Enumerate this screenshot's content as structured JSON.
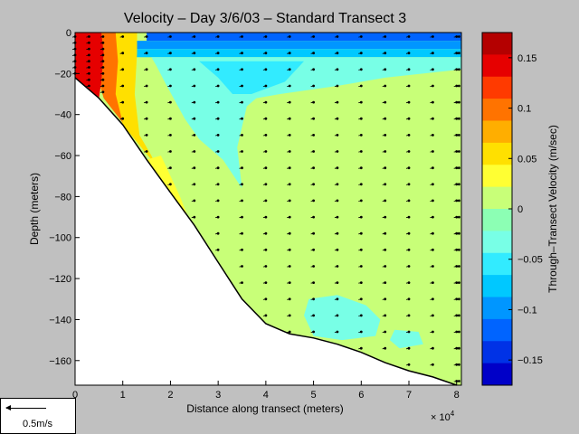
{
  "chart_data": {
    "type": "heatmap",
    "title": "Velocity – Day 3/6/03 – Standard Transect 3",
    "xlabel": "Distance along transect (meters)",
    "ylabel": "Depth (meters)",
    "x_multiplier": "× 10",
    "x_multiplier_exp": "4",
    "xlim": [
      0,
      8.1
    ],
    "ylim": [
      -172,
      0
    ],
    "x_ticks": [
      "0",
      "1",
      "2",
      "3",
      "4",
      "5",
      "6",
      "7",
      "8"
    ],
    "y_ticks": [
      "0",
      "−20",
      "−40",
      "−60",
      "−80",
      "−100",
      "−120",
      "−140",
      "−160"
    ],
    "colorbar": {
      "label": "Through–Transect Velocity (m/sec)",
      "range": [
        -0.175,
        0.175
      ],
      "ticks": [
        "0.15",
        "0.1",
        "0.05",
        "0",
        "−0.05",
        "−0.1",
        "−0.15"
      ],
      "tick_values": [
        0.15,
        0.1,
        0.05,
        0,
        -0.05,
        -0.1,
        -0.15
      ],
      "colors": [
        "#b40000",
        "#e60000",
        "#ff3a00",
        "#ff7300",
        "#ffae00",
        "#ffe000",
        "#ffff33",
        "#c8ff78",
        "#8cffb4",
        "#78ffe6",
        "#32ebff",
        "#00c8ff",
        "#0096ff",
        "#0064ff",
        "#0032e6",
        "#0000c8"
      ]
    },
    "bottom_profile": [
      [
        0,
        -22
      ],
      [
        0.5,
        -32
      ],
      [
        1,
        -45
      ],
      [
        1.5,
        -62
      ],
      [
        2,
        -78
      ],
      [
        2.5,
        -94
      ],
      [
        3,
        -112
      ],
      [
        3.5,
        -130
      ],
      [
        4,
        -142
      ],
      [
        4.5,
        -147
      ],
      [
        5,
        -149
      ],
      [
        5.5,
        -152
      ],
      [
        6,
        -156
      ],
      [
        6.5,
        -161
      ],
      [
        7,
        -165
      ],
      [
        7.5,
        -168
      ],
      [
        8,
        -172
      ]
    ],
    "field_regions": [
      {
        "name": "surface-blue",
        "velocity": -0.12,
        "shape": [
          [
            1.5,
            0
          ],
          [
            8.1,
            0
          ],
          [
            8.1,
            -4
          ],
          [
            1.5,
            -4
          ]
        ]
      },
      {
        "name": "surface-blue-2",
        "velocity": -0.09,
        "shape": [
          [
            1.2,
            -4
          ],
          [
            8.1,
            -4
          ],
          [
            8.1,
            -8
          ],
          [
            1.3,
            -8
          ]
        ]
      },
      {
        "name": "surface-blue-3",
        "velocity": -0.07,
        "shape": [
          [
            1.1,
            -8
          ],
          [
            8.1,
            -8
          ],
          [
            8.1,
            -12
          ],
          [
            1.2,
            -12
          ]
        ]
      },
      {
        "name": "cyan-mass-1",
        "velocity": -0.04,
        "shape": [
          [
            1.6,
            -12
          ],
          [
            8.1,
            -12
          ],
          [
            8.1,
            -18
          ],
          [
            6.5,
            -22
          ],
          [
            5.5,
            -26
          ],
          [
            4.3,
            -30
          ],
          [
            3.8,
            -32
          ],
          [
            3.6,
            -36
          ],
          [
            3.4,
            -56
          ],
          [
            3.5,
            -76
          ],
          [
            3.1,
            -62
          ],
          [
            2.6,
            -52
          ],
          [
            2.3,
            -42
          ],
          [
            1.9,
            -25
          ],
          [
            1.7,
            -16
          ]
        ]
      },
      {
        "name": "cyan-mass-2",
        "velocity": -0.06,
        "shape": [
          [
            2.6,
            -14
          ],
          [
            4.8,
            -14
          ],
          [
            4.4,
            -24
          ],
          [
            3.7,
            -30
          ],
          [
            3.3,
            -30
          ],
          [
            3.0,
            -22
          ]
        ]
      },
      {
        "name": "deep-blob",
        "velocity": -0.035,
        "shape": [
          [
            4.9,
            -130
          ],
          [
            5.5,
            -128
          ],
          [
            6.1,
            -133
          ],
          [
            6.4,
            -140
          ],
          [
            6.3,
            -148
          ],
          [
            5.6,
            -150
          ],
          [
            5.0,
            -148
          ],
          [
            4.8,
            -138
          ]
        ]
      },
      {
        "name": "small-blob",
        "velocity": -0.035,
        "shape": [
          [
            6.7,
            -145
          ],
          [
            7.2,
            -146
          ],
          [
            7.3,
            -152
          ],
          [
            6.8,
            -154
          ],
          [
            6.6,
            -150
          ]
        ]
      },
      {
        "name": "yellow-band",
        "velocity": 0.06,
        "shape": [
          [
            0.6,
            0
          ],
          [
            1.3,
            0
          ],
          [
            1.3,
            -10
          ],
          [
            1.25,
            -30
          ],
          [
            1.35,
            -50
          ],
          [
            1.6,
            -60
          ],
          [
            1.9,
            -76
          ],
          [
            2.2,
            -88
          ],
          [
            1.6,
            -62
          ],
          [
            1.0,
            -45
          ],
          [
            0.8,
            -30
          ],
          [
            0.7,
            -15
          ]
        ]
      },
      {
        "name": "orange-band",
        "velocity": 0.1,
        "shape": [
          [
            0.35,
            0
          ],
          [
            0.85,
            0
          ],
          [
            0.9,
            -14
          ],
          [
            0.85,
            -30
          ],
          [
            1.0,
            -44
          ],
          [
            0.6,
            -32
          ],
          [
            0.45,
            -20
          ]
        ]
      },
      {
        "name": "red-core",
        "velocity": 0.15,
        "shape": [
          [
            0,
            0
          ],
          [
            0.55,
            0
          ],
          [
            0.6,
            -10
          ],
          [
            0.55,
            -24
          ],
          [
            0.5,
            -32
          ],
          [
            0,
            -22
          ]
        ]
      },
      {
        "name": "green-wedge",
        "velocity": 0.03,
        "shape": [
          [
            1.5,
            -62
          ],
          [
            1.8,
            -60
          ],
          [
            2.2,
            -80
          ],
          [
            2.4,
            -92
          ],
          [
            2.2,
            -88
          ],
          [
            1.9,
            -76
          ]
        ]
      }
    ],
    "grid": false
  },
  "scale": {
    "label": "0.5m/s"
  }
}
